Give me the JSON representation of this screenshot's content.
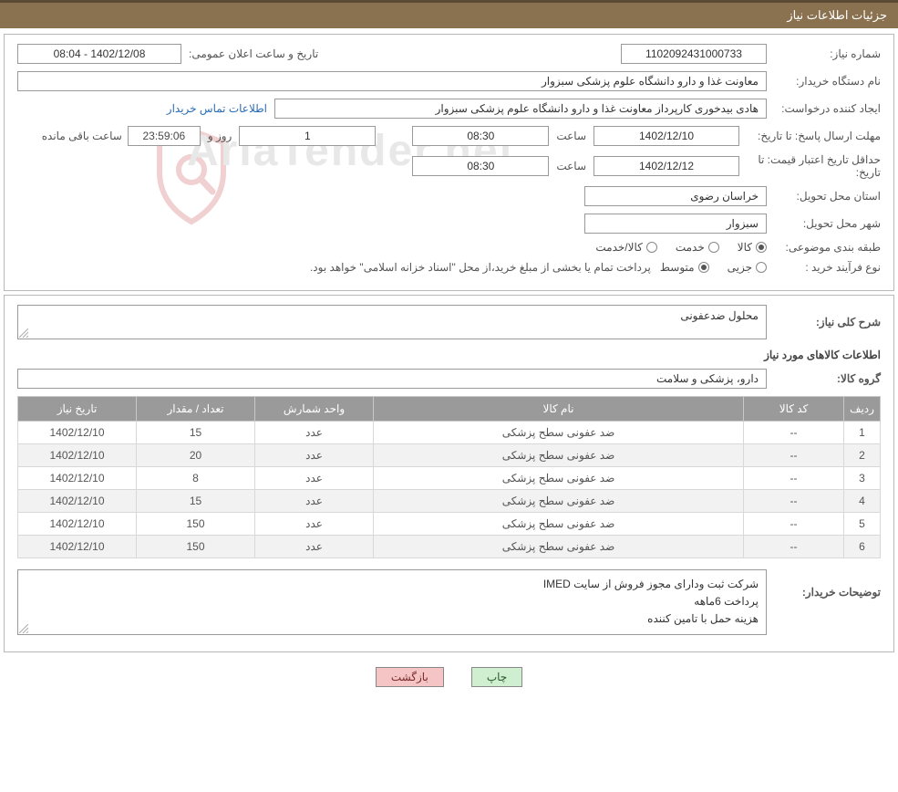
{
  "header": {
    "title": "جزئیات اطلاعات نیاز"
  },
  "colors": {
    "header_bg": "#8a7150",
    "header_border": "#5a4a35",
    "panel_border": "#b8b8b8",
    "th_bg": "#9a9a9a",
    "link": "#2a6db5",
    "btn_print_bg": "#d0eed0",
    "btn_back_bg": "#f5c5c5",
    "watermark": "#e8e8e8"
  },
  "fields": {
    "need_number_label": "شماره نیاز:",
    "need_number": "1102092431000733",
    "announce_label": "تاریخ و ساعت اعلان عمومی:",
    "announce_value": "1402/12/08 - 08:04",
    "buyer_org_label": "نام دستگاه خریدار:",
    "buyer_org": "معاونت غذا و دارو   دانشگاه علوم پزشکی سبزوار",
    "requester_label": "ایجاد کننده درخواست:",
    "requester": "هادی بیدخوری کارپرداز معاونت غذا و دارو   دانشگاه علوم پزشکی سبزوار",
    "contact_link": "اطلاعات تماس خریدار",
    "deadline_label": "مهلت ارسال پاسخ: تا تاریخ:",
    "deadline_date": "1402/12/10",
    "time_label": "ساعت",
    "deadline_time": "08:30",
    "days_remaining": "1",
    "days_and": "روز و",
    "time_remaining": "23:59:06",
    "remaining_suffix": "ساعت باقی مانده",
    "validity_label": "حداقل تاریخ اعتبار قیمت: تا تاریخ:",
    "validity_date": "1402/12/12",
    "validity_time": "08:30",
    "province_label": "استان محل تحویل:",
    "province": "خراسان رضوی",
    "city_label": "شهر محل تحویل:",
    "city": "سبزوار",
    "category_label": "طبقه بندی موضوعی:",
    "category_options": {
      "goods": "کالا",
      "service": "خدمت",
      "both": "کالا/خدمت"
    },
    "category_selected": "goods",
    "purchase_type_label": "نوع فرآیند خرید :",
    "purchase_type_options": {
      "minor": "جزیی",
      "medium": "متوسط"
    },
    "purchase_type_selected": "medium",
    "purchase_note": "پرداخت تمام یا بخشی از مبلغ خرید،از محل \"اسناد خزانه اسلامی\" خواهد بود."
  },
  "need_desc": {
    "label": "شرح کلی نیاز:",
    "value": "محلول ضدعفونی"
  },
  "goods_section": {
    "heading": "اطلاعات کالاهای مورد نیاز",
    "group_label": "گروه کالا:",
    "group_value": "دارو، پزشکی و سلامت"
  },
  "table": {
    "columns": {
      "row": "ردیف",
      "code": "کد کالا",
      "name": "نام کالا",
      "unit": "واحد شمارش",
      "qty": "تعداد / مقدار",
      "date": "تاریخ نیاز"
    },
    "rows": [
      {
        "row": "1",
        "code": "--",
        "name": "ضد عفونی سطح پزشکی",
        "unit": "عدد",
        "qty": "15",
        "date": "1402/12/10"
      },
      {
        "row": "2",
        "code": "--",
        "name": "ضد عفونی سطح پزشکی",
        "unit": "عدد",
        "qty": "20",
        "date": "1402/12/10"
      },
      {
        "row": "3",
        "code": "--",
        "name": "ضد عفونی سطح پزشکی",
        "unit": "عدد",
        "qty": "8",
        "date": "1402/12/10"
      },
      {
        "row": "4",
        "code": "--",
        "name": "ضد عفونی سطح پزشکی",
        "unit": "عدد",
        "qty": "15",
        "date": "1402/12/10"
      },
      {
        "row": "5",
        "code": "--",
        "name": "ضد عفونی سطح پزشکی",
        "unit": "عدد",
        "qty": "150",
        "date": "1402/12/10"
      },
      {
        "row": "6",
        "code": "--",
        "name": "ضد عفونی سطح پزشکی",
        "unit": "عدد",
        "qty": "150",
        "date": "1402/12/10"
      }
    ]
  },
  "buyer_notes": {
    "label": "توضیحات خریدار:",
    "line1": "شرکت ثبت ودارای مجوز فروش از سایت IMED",
    "line2": "پرداخت 6ماهه",
    "line3": "هزینه حمل با تامین کننده"
  },
  "buttons": {
    "print": "چاپ",
    "back": "بازگشت"
  },
  "watermark": {
    "text": "AriaTender.net"
  }
}
